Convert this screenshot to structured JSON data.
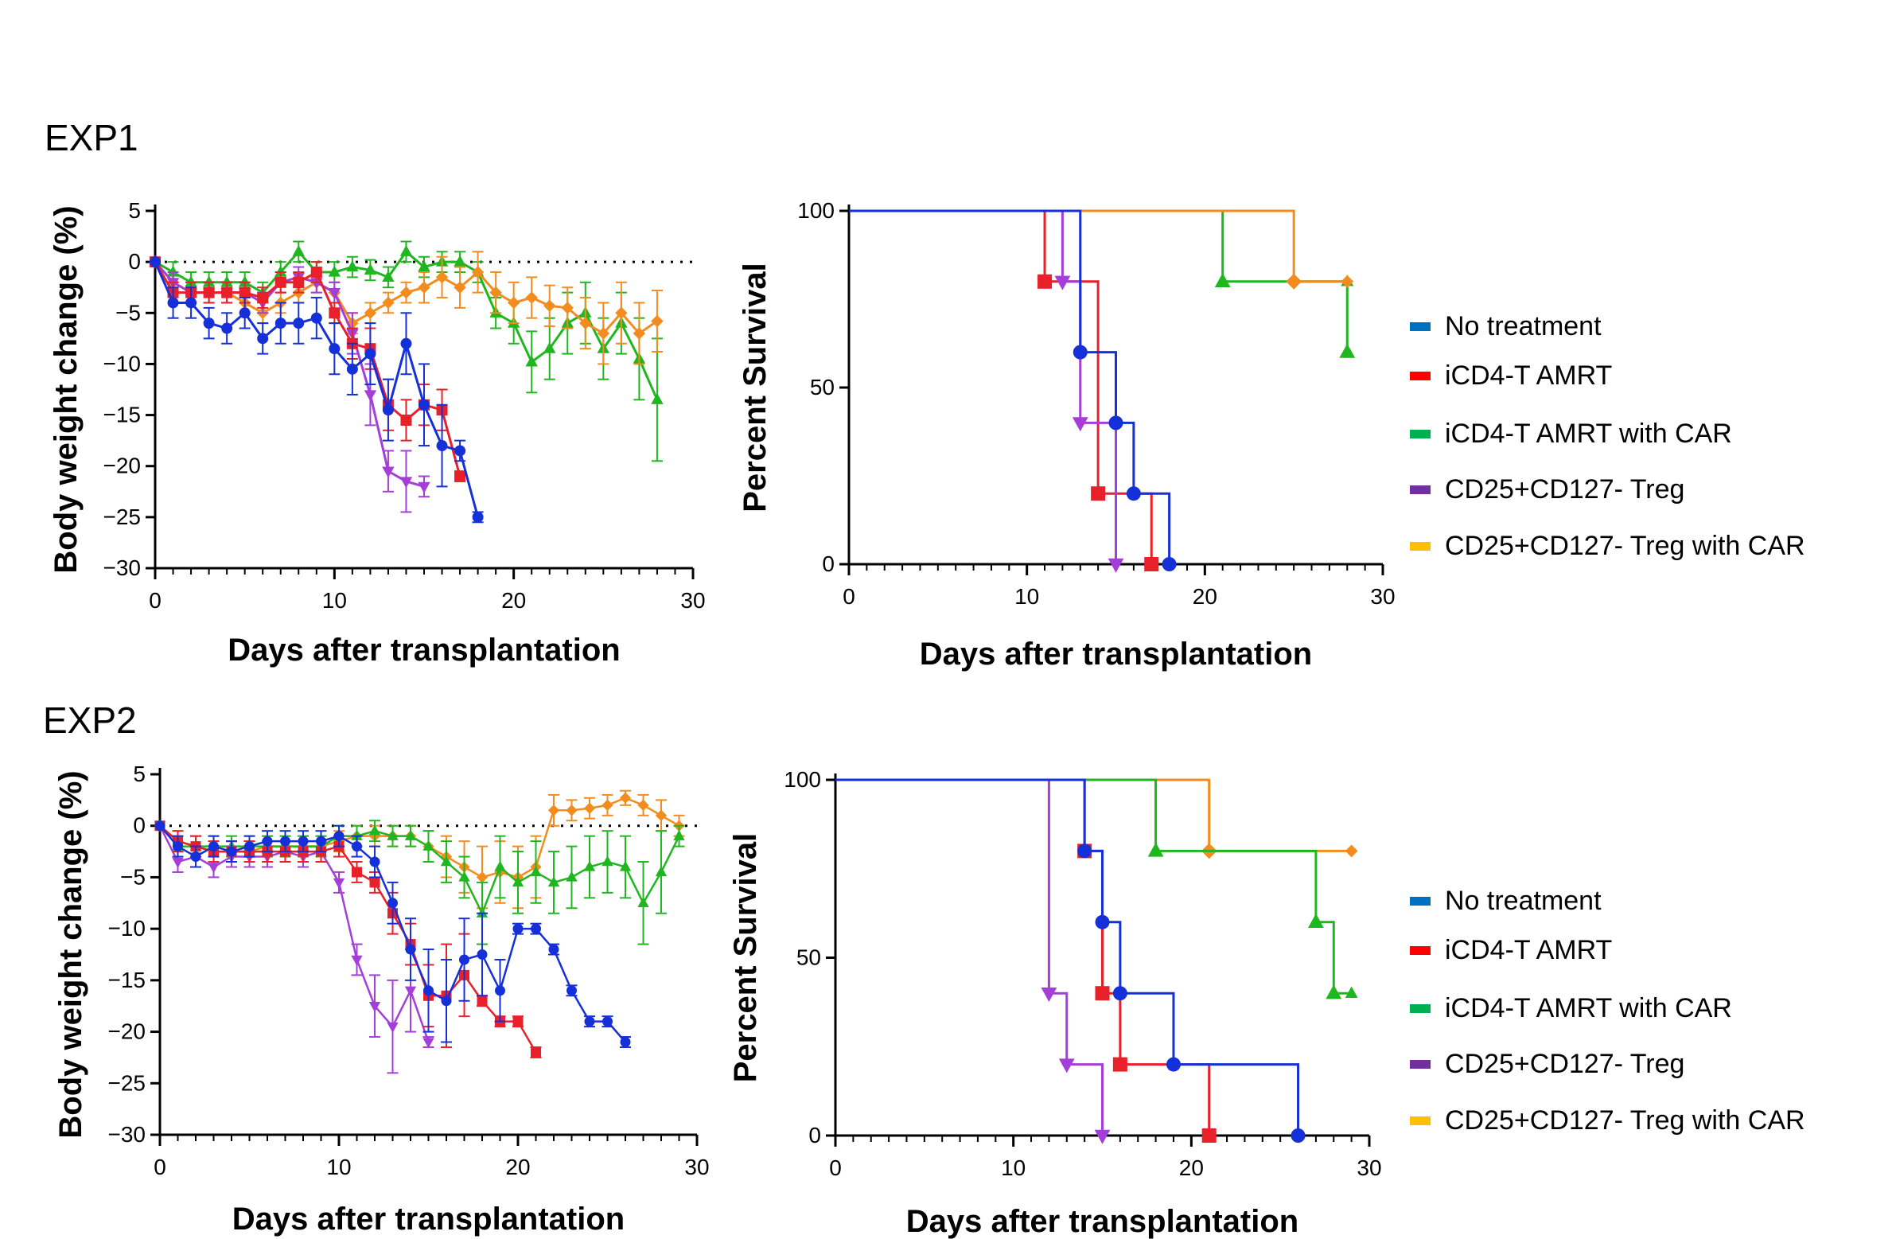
{
  "figure": {
    "panel_labels": [
      "EXP1",
      "EXP2"
    ],
    "legend": [
      {
        "label": "No treatment",
        "color": "#0070C0"
      },
      {
        "label": "iCD4-T AMRT",
        "color": "#FF0000"
      },
      {
        "label": "iCD4-T AMRT with CAR",
        "color": "#00B050"
      },
      {
        "label": "CD25+CD127- Treg",
        "color": "#7030A0"
      },
      {
        "label": "CD25+CD127- Treg with CAR",
        "color": "#FFC000"
      }
    ]
  },
  "chart_data": [
    {
      "id": "exp1-weight",
      "type": "line",
      "title": "",
      "xlabel": "Days after transplantation",
      "ylabel": "Body weight change (%)",
      "xlim": [
        0,
        30
      ],
      "ylim": [
        -30,
        5
      ],
      "xticks": [
        0,
        10,
        20,
        30
      ],
      "yticks": [
        5,
        0,
        -5,
        -10,
        -15,
        -20,
        -25,
        -30
      ],
      "reference_line_y": 0,
      "series": [
        {
          "name": "iCD4-T AMRT with CAR",
          "color": "#1FB71F",
          "marker": "triangle-up",
          "x": [
            0,
            1,
            2,
            3,
            4,
            5,
            6,
            7,
            8,
            9,
            10,
            11,
            12,
            13,
            14,
            15,
            16,
            17,
            18,
            19,
            20,
            21,
            22,
            23,
            24,
            25,
            26,
            27,
            28
          ],
          "y": [
            0,
            -1,
            -2,
            -2,
            -2,
            -2,
            -3,
            -1,
            1,
            -1,
            -1,
            -0.5,
            -0.8,
            -1.5,
            1,
            -0.5,
            0,
            0,
            -1,
            -5,
            -6,
            -9.8,
            -8.5,
            -6,
            -5,
            -8.5,
            -6,
            -9.5,
            -13.5
          ],
          "err": [
            0,
            1,
            1,
            1,
            1,
            1,
            1,
            1,
            1,
            1,
            1,
            1,
            1,
            1,
            1,
            1,
            1,
            1,
            1,
            1.5,
            2,
            3,
            3,
            3,
            3,
            3,
            3,
            4,
            6
          ]
        },
        {
          "name": "CD25+CD127- Treg with CAR",
          "color": "#F28C1E",
          "marker": "diamond",
          "x": [
            0,
            1,
            2,
            3,
            4,
            5,
            6,
            7,
            8,
            9,
            10,
            11,
            12,
            13,
            14,
            15,
            16,
            17,
            18,
            19,
            20,
            21,
            22,
            23,
            24,
            25,
            26,
            27,
            28
          ],
          "y": [
            0,
            -2,
            -3,
            -3,
            -3,
            -4,
            -5,
            -4,
            -3,
            -2,
            -3,
            -6,
            -5,
            -4,
            -3,
            -2.5,
            -1.5,
            -2.5,
            -1,
            -3,
            -4,
            -3.5,
            -4.3,
            -4.5,
            -6,
            -7,
            -5,
            -7,
            -5.8
          ],
          "err": [
            0,
            1,
            1,
            1,
            1,
            1,
            1,
            1,
            1,
            1,
            1,
            1,
            1,
            1,
            1,
            1.5,
            2,
            2,
            2,
            2,
            2,
            2,
            2,
            2,
            2.5,
            3,
            3,
            3,
            3
          ]
        },
        {
          "name": "CD25+CD127- Treg",
          "color": "#A53ED8",
          "marker": "triangle-down",
          "x": [
            0,
            1,
            2,
            3,
            4,
            5,
            6,
            7,
            8,
            9,
            10,
            11,
            12,
            13,
            14,
            15
          ],
          "y": [
            0,
            -2,
            -3,
            -3,
            -3,
            -3,
            -4,
            -2,
            -1.5,
            -2,
            -3,
            -7,
            -13,
            -20.5,
            -21.5,
            -22
          ],
          "err": [
            0,
            1,
            1,
            1,
            1,
            1,
            1,
            1,
            1,
            1,
            1,
            2,
            3,
            2,
            3,
            1
          ]
        },
        {
          "name": "iCD4-T AMRT",
          "color": "#E8202A",
          "marker": "square",
          "x": [
            0,
            1,
            2,
            3,
            4,
            5,
            6,
            7,
            8,
            9,
            10,
            11,
            12,
            13,
            14,
            15,
            16,
            17
          ],
          "y": [
            0,
            -3,
            -3,
            -3,
            -3,
            -3,
            -3.5,
            -2,
            -2,
            -1,
            -5,
            -8,
            -8.5,
            -14,
            -15.5,
            -14,
            -14.5,
            -21
          ],
          "err": [
            0,
            1,
            1,
            1,
            1,
            1,
            1,
            1,
            1,
            1,
            1,
            1.5,
            2,
            2.5,
            2,
            2,
            2,
            0.5
          ]
        },
        {
          "name": "No treatment",
          "color": "#1530D8",
          "marker": "circle",
          "x": [
            0,
            1,
            2,
            3,
            4,
            5,
            6,
            7,
            8,
            9,
            10,
            11,
            12,
            13,
            14,
            15,
            16,
            17,
            18
          ],
          "y": [
            0,
            -4,
            -4,
            -6,
            -6.5,
            -5,
            -7.5,
            -6,
            -6,
            -5.5,
            -8.5,
            -10.5,
            -9,
            -14.5,
            -8,
            -14,
            -18,
            -18.5,
            -25
          ],
          "err": [
            0,
            1.5,
            1.5,
            1.5,
            1.5,
            1.5,
            1.5,
            2,
            2,
            2,
            2.5,
            2.5,
            3,
            3,
            3,
            4,
            4,
            1,
            0.5
          ]
        }
      ]
    },
    {
      "id": "exp1-survival",
      "type": "line",
      "title": "",
      "xlabel": "Days after transplantation",
      "ylabel": "Percent Survival",
      "xlim": [
        0,
        30
      ],
      "ylim": [
        0,
        100
      ],
      "xticks": [
        0,
        10,
        20,
        30
      ],
      "yticks": [
        0,
        50,
        100
      ],
      "step": true,
      "series": [
        {
          "name": "iCD4-T AMRT with CAR",
          "color": "#1FB71F",
          "marker": "triangle-up",
          "x": [
            0,
            21,
            28
          ],
          "y": [
            100,
            80,
            60
          ],
          "censored": [
            [
              28,
              80
            ]
          ]
        },
        {
          "name": "CD25+CD127- Treg with CAR",
          "color": "#F28C1E",
          "marker": "diamond",
          "x": [
            0,
            25
          ],
          "y": [
            100,
            80
          ],
          "censored": [
            [
              28,
              80
            ]
          ]
        },
        {
          "name": "iCD4-T AMRT",
          "color": "#E8202A",
          "marker": "square",
          "x": [
            0,
            11,
            14,
            17
          ],
          "y": [
            100,
            80,
            20,
            0
          ],
          "censored": []
        },
        {
          "name": "CD25+CD127- Treg",
          "color": "#A53ED8",
          "marker": "triangle-down",
          "x": [
            0,
            12,
            13,
            15
          ],
          "y": [
            100,
            80,
            40,
            0
          ],
          "censored": []
        },
        {
          "name": "No treatment",
          "color": "#1530D8",
          "marker": "circle",
          "x": [
            0,
            13,
            15,
            16,
            18
          ],
          "y": [
            100,
            60,
            40,
            20,
            0
          ],
          "censored": []
        }
      ]
    },
    {
      "id": "exp2-weight",
      "type": "line",
      "title": "",
      "xlabel": "Days after transplantation",
      "ylabel": "Body weight change (%)",
      "xlim": [
        0,
        30
      ],
      "ylim": [
        -30,
        5
      ],
      "xticks": [
        0,
        10,
        20,
        30
      ],
      "yticks": [
        5,
        0,
        -5,
        -10,
        -15,
        -20,
        -25,
        -30
      ],
      "reference_line_y": 0,
      "series": [
        {
          "name": "CD25+CD127- Treg with CAR",
          "color": "#F28C1E",
          "marker": "diamond",
          "x": [
            0,
            1,
            2,
            3,
            4,
            5,
            6,
            7,
            8,
            9,
            10,
            11,
            12,
            13,
            14,
            15,
            16,
            17,
            18,
            19,
            20,
            21,
            22,
            23,
            24,
            25,
            26,
            27,
            28,
            29
          ],
          "y": [
            0,
            -1.5,
            -2,
            -2.5,
            -2.5,
            -2.5,
            -2,
            -2,
            -2,
            -2,
            -1.5,
            -1,
            -1,
            -1,
            -1,
            -2,
            -3,
            -4,
            -5,
            -4.5,
            -5,
            -4,
            1.5,
            1.5,
            1.7,
            2,
            2.7,
            2,
            1,
            0
          ],
          "err": [
            0,
            1,
            1,
            1,
            1,
            1,
            1,
            1,
            1,
            1,
            1,
            1,
            1,
            1,
            1,
            1.5,
            2,
            2.5,
            3,
            3,
            3,
            3,
            1.5,
            1,
            1,
            1,
            0.7,
            1,
            1.5,
            1
          ]
        },
        {
          "name": "iCD4-T AMRT with CAR",
          "color": "#1FB71F",
          "marker": "triangle-up",
          "x": [
            0,
            1,
            2,
            3,
            4,
            5,
            6,
            7,
            8,
            9,
            10,
            11,
            12,
            13,
            14,
            15,
            16,
            17,
            18,
            19,
            20,
            21,
            22,
            23,
            24,
            25,
            26,
            27,
            28,
            29
          ],
          "y": [
            0,
            -2,
            -2,
            -2,
            -2,
            -2,
            -2,
            -2,
            -2,
            -2,
            -1,
            -1,
            -0.5,
            -1,
            -1,
            -2,
            -3.5,
            -5,
            -8.5,
            -4,
            -5.5,
            -4.5,
            -5.5,
            -5,
            -4,
            -3.5,
            -4,
            -7.5,
            -4.5,
            -1
          ],
          "err": [
            0,
            1,
            1,
            1,
            1,
            1,
            1,
            1,
            1,
            1,
            1,
            1,
            1,
            1,
            1,
            1.5,
            2,
            2,
            3,
            3,
            3,
            3,
            3,
            3,
            3,
            3,
            3,
            4,
            4,
            1
          ]
        },
        {
          "name": "CD25+CD127- Treg",
          "color": "#A53ED8",
          "marker": "triangle-down",
          "x": [
            0,
            1,
            2,
            3,
            4,
            5,
            6,
            7,
            8,
            9,
            10,
            11,
            12,
            13,
            14,
            15
          ],
          "y": [
            0,
            -3.5,
            -3,
            -4,
            -3,
            -3,
            -3,
            -2.5,
            -3,
            -2.5,
            -5.5,
            -13,
            -17.5,
            -19.5,
            -16,
            -21
          ],
          "err": [
            0,
            1,
            1,
            1,
            1,
            1,
            1,
            1,
            1,
            1,
            1,
            1.5,
            3,
            4.5,
            4,
            0.5
          ]
        },
        {
          "name": "iCD4-T AMRT",
          "color": "#E8202A",
          "marker": "square",
          "x": [
            0,
            1,
            2,
            3,
            4,
            5,
            6,
            7,
            8,
            9,
            10,
            11,
            12,
            13,
            14,
            15,
            16,
            17,
            18,
            19,
            20,
            21
          ],
          "y": [
            0,
            -1.5,
            -2,
            -2.5,
            -2.5,
            -2.5,
            -2.5,
            -2.5,
            -2.5,
            -2.5,
            -2,
            -4.5,
            -5.5,
            -8.5,
            -11.5,
            -16.5,
            -16.5,
            -14.5,
            -17,
            -19,
            -19,
            -22
          ],
          "err": [
            0,
            1,
            1,
            1,
            1,
            1,
            1,
            1,
            1,
            1,
            1,
            1,
            1,
            2,
            2,
            3,
            5,
            4,
            0.5,
            0.5,
            0.5,
            0.5
          ]
        },
        {
          "name": "No treatment",
          "color": "#1530D8",
          "marker": "circle",
          "x": [
            0,
            1,
            2,
            3,
            4,
            5,
            6,
            7,
            8,
            9,
            10,
            11,
            12,
            13,
            14,
            15,
            16,
            17,
            18,
            19,
            20,
            21,
            22,
            23,
            24,
            25,
            26
          ],
          "y": [
            0,
            -2,
            -3,
            -2,
            -2.5,
            -2,
            -1.5,
            -1.5,
            -1.5,
            -1.5,
            -1,
            -2,
            -3.5,
            -7.5,
            -12,
            -16,
            -17,
            -13,
            -12.5,
            -16,
            -10,
            -10,
            -12,
            -16,
            -19,
            -19,
            -21
          ],
          "err": [
            0,
            1,
            1,
            1,
            1,
            1,
            1,
            1,
            1,
            1,
            1,
            1,
            1.5,
            2,
            3,
            4,
            4,
            4,
            4,
            3,
            0.5,
            0.5,
            0.5,
            0.5,
            0.5,
            0.5,
            0.5
          ]
        }
      ]
    },
    {
      "id": "exp2-survival",
      "type": "line",
      "title": "",
      "xlabel": "Days after transplantation",
      "ylabel": "Percent Survival",
      "xlim": [
        0,
        30
      ],
      "ylim": [
        0,
        100
      ],
      "xticks": [
        0,
        10,
        20,
        30
      ],
      "yticks": [
        0,
        50,
        100
      ],
      "step": true,
      "series": [
        {
          "name": "CD25+CD127- Treg with CAR",
          "color": "#F28C1E",
          "marker": "diamond",
          "x": [
            0,
            21
          ],
          "y": [
            100,
            80
          ],
          "censored": [
            [
              29,
              80
            ]
          ]
        },
        {
          "name": "iCD4-T AMRT with CAR",
          "color": "#1FB71F",
          "marker": "triangle-up",
          "x": [
            0,
            18,
            27,
            28
          ],
          "y": [
            100,
            80,
            60,
            40
          ],
          "censored": [
            [
              29,
              40
            ]
          ]
        },
        {
          "name": "CD25+CD127- Treg",
          "color": "#A53ED8",
          "marker": "triangle-down",
          "x": [
            0,
            12,
            13,
            15
          ],
          "y": [
            100,
            40,
            20,
            0
          ],
          "censored": []
        },
        {
          "name": "iCD4-T AMRT",
          "color": "#E8202A",
          "marker": "square",
          "x": [
            0,
            14,
            15,
            16,
            21
          ],
          "y": [
            100,
            80,
            40,
            20,
            0
          ],
          "censored": []
        },
        {
          "name": "No treatment",
          "color": "#1530D8",
          "marker": "circle",
          "x": [
            0,
            14,
            15,
            16,
            19,
            26
          ],
          "y": [
            100,
            80,
            60,
            40,
            20,
            0
          ],
          "censored": []
        }
      ]
    }
  ]
}
